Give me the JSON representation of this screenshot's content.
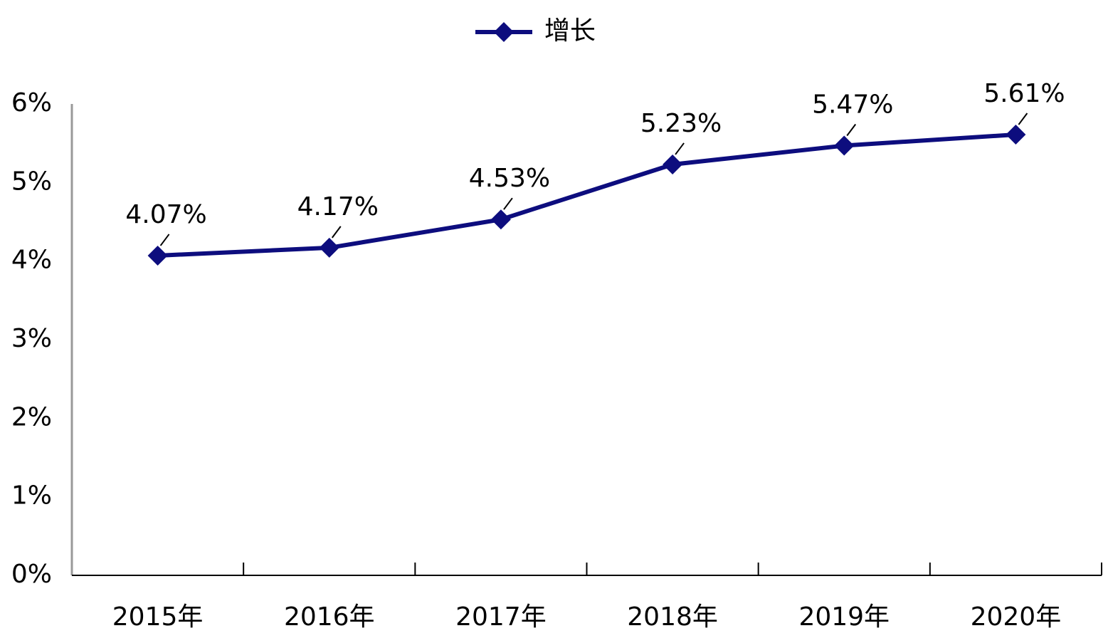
{
  "chart_data": {
    "type": "line",
    "categories": [
      "2015年",
      "2016年",
      "2017年",
      "2018年",
      "2019年",
      "2020年"
    ],
    "series": [
      {
        "name": "增长",
        "color": "#0d0d7e",
        "values": [
          4.07,
          4.17,
          4.53,
          5.23,
          5.47,
          5.61
        ],
        "value_labels": [
          "4.07%",
          "4.17%",
          "4.53%",
          "5.23%",
          "5.47%",
          "5.61%"
        ]
      }
    ],
    "ylim": [
      0,
      6
    ],
    "yticks": [
      {
        "value": 0,
        "label": "0%"
      },
      {
        "value": 1,
        "label": "1%"
      },
      {
        "value": 2,
        "label": "2%"
      },
      {
        "value": 3,
        "label": "3%"
      },
      {
        "value": 4,
        "label": "4%"
      },
      {
        "value": 5,
        "label": "5%"
      },
      {
        "value": 6,
        "label": "6%"
      }
    ],
    "grid": false,
    "legend": "top"
  }
}
